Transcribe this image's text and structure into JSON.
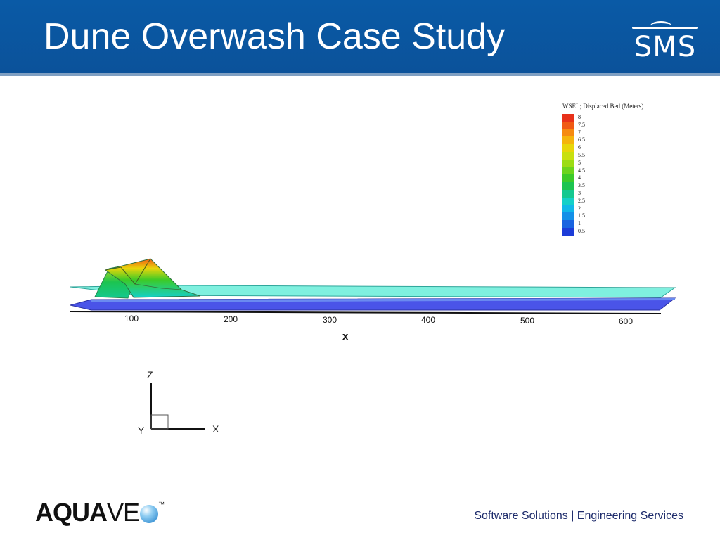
{
  "slide": {
    "title": "Dune Overwash Case Study",
    "header_logo": "SMS",
    "footer_logo_bold": "AQUA",
    "footer_logo_light": "VE",
    "footer_logo_tm": "™",
    "tagline": "Software Solutions | Engineering Services"
  },
  "legend": {
    "title": "WSEL;  Displaced Bed (Meters)",
    "labels": [
      "8",
      "7.5",
      "7",
      "6.5",
      "6",
      "5.5",
      "5",
      "4.5",
      "4",
      "3.5",
      "3",
      "2.5",
      "2",
      "1.5",
      "1",
      "0.5"
    ],
    "colors": [
      "#e8311a",
      "#f05a14",
      "#f68a10",
      "#f5b40c",
      "#e8d60a",
      "#c8e010",
      "#9cdc14",
      "#6cd41c",
      "#3cca28",
      "#1cc450",
      "#14c890",
      "#14d0c8",
      "#10b8e8",
      "#1490e8",
      "#1a64e0",
      "#1c3cd8"
    ]
  },
  "chart_data": {
    "type": "surface",
    "xlabel": "x",
    "x_ticks": [
      "100",
      "200",
      "300",
      "400",
      "500",
      "600"
    ],
    "color_scale_min": 0.5,
    "color_scale_max": 8,
    "color_scale_step": 0.5
  },
  "triad": {
    "z_label": "Z",
    "y_label": "Y",
    "x_label": "X"
  }
}
